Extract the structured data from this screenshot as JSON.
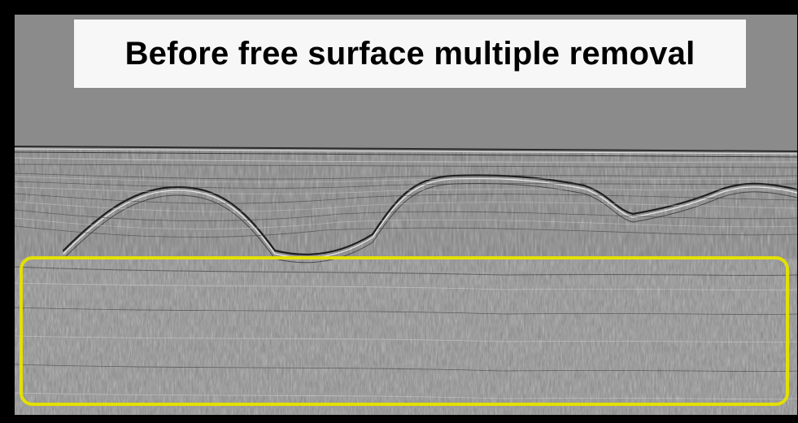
{
  "title": "Before free surface multiple removal",
  "colors": {
    "background": "#000000",
    "panel_gray": "#8a8a8a",
    "title_box": "#f7f7f7",
    "highlight": "#e3e000"
  },
  "highlight_region": "multiples region"
}
